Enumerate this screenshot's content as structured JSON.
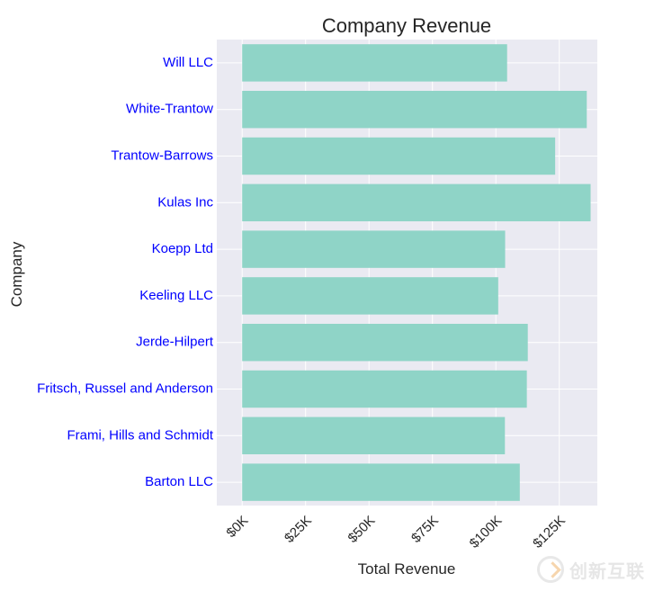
{
  "chart_data": {
    "type": "bar",
    "orientation": "horizontal",
    "title": "Company Revenue",
    "xlabel": "Total Revenue",
    "ylabel": "Company",
    "categories": [
      "Barton LLC",
      "Frami, Hills and Schmidt",
      "Fritsch, Russel and Anderson",
      "Jerde-Hilpert",
      "Keeling LLC",
      "Koepp Ltd",
      "Kulas Inc",
      "Trantow-Barrows",
      "White-Trantow",
      "Will LLC"
    ],
    "values": [
      109438,
      103569,
      112214,
      112591,
      100934,
      103660,
      137352,
      123381,
      135841,
      104437
    ],
    "xticks": [
      0,
      25000,
      50000,
      75000,
      100000,
      125000
    ],
    "xtick_labels": [
      "$0K",
      "$25K",
      "$50K",
      "$75K",
      "$100K",
      "$125K"
    ],
    "xlim": [
      -10000,
      140000
    ],
    "grid": true,
    "legend": "none",
    "colors": {
      "bar": "#8fd4c7",
      "plot_background": "#eaeaf2",
      "grid": "#ffffff",
      "category_labels": "#0000ff",
      "text": "#262626"
    }
  },
  "watermark": {
    "text": "创新互联",
    "icon": "brand-logo-icon"
  }
}
